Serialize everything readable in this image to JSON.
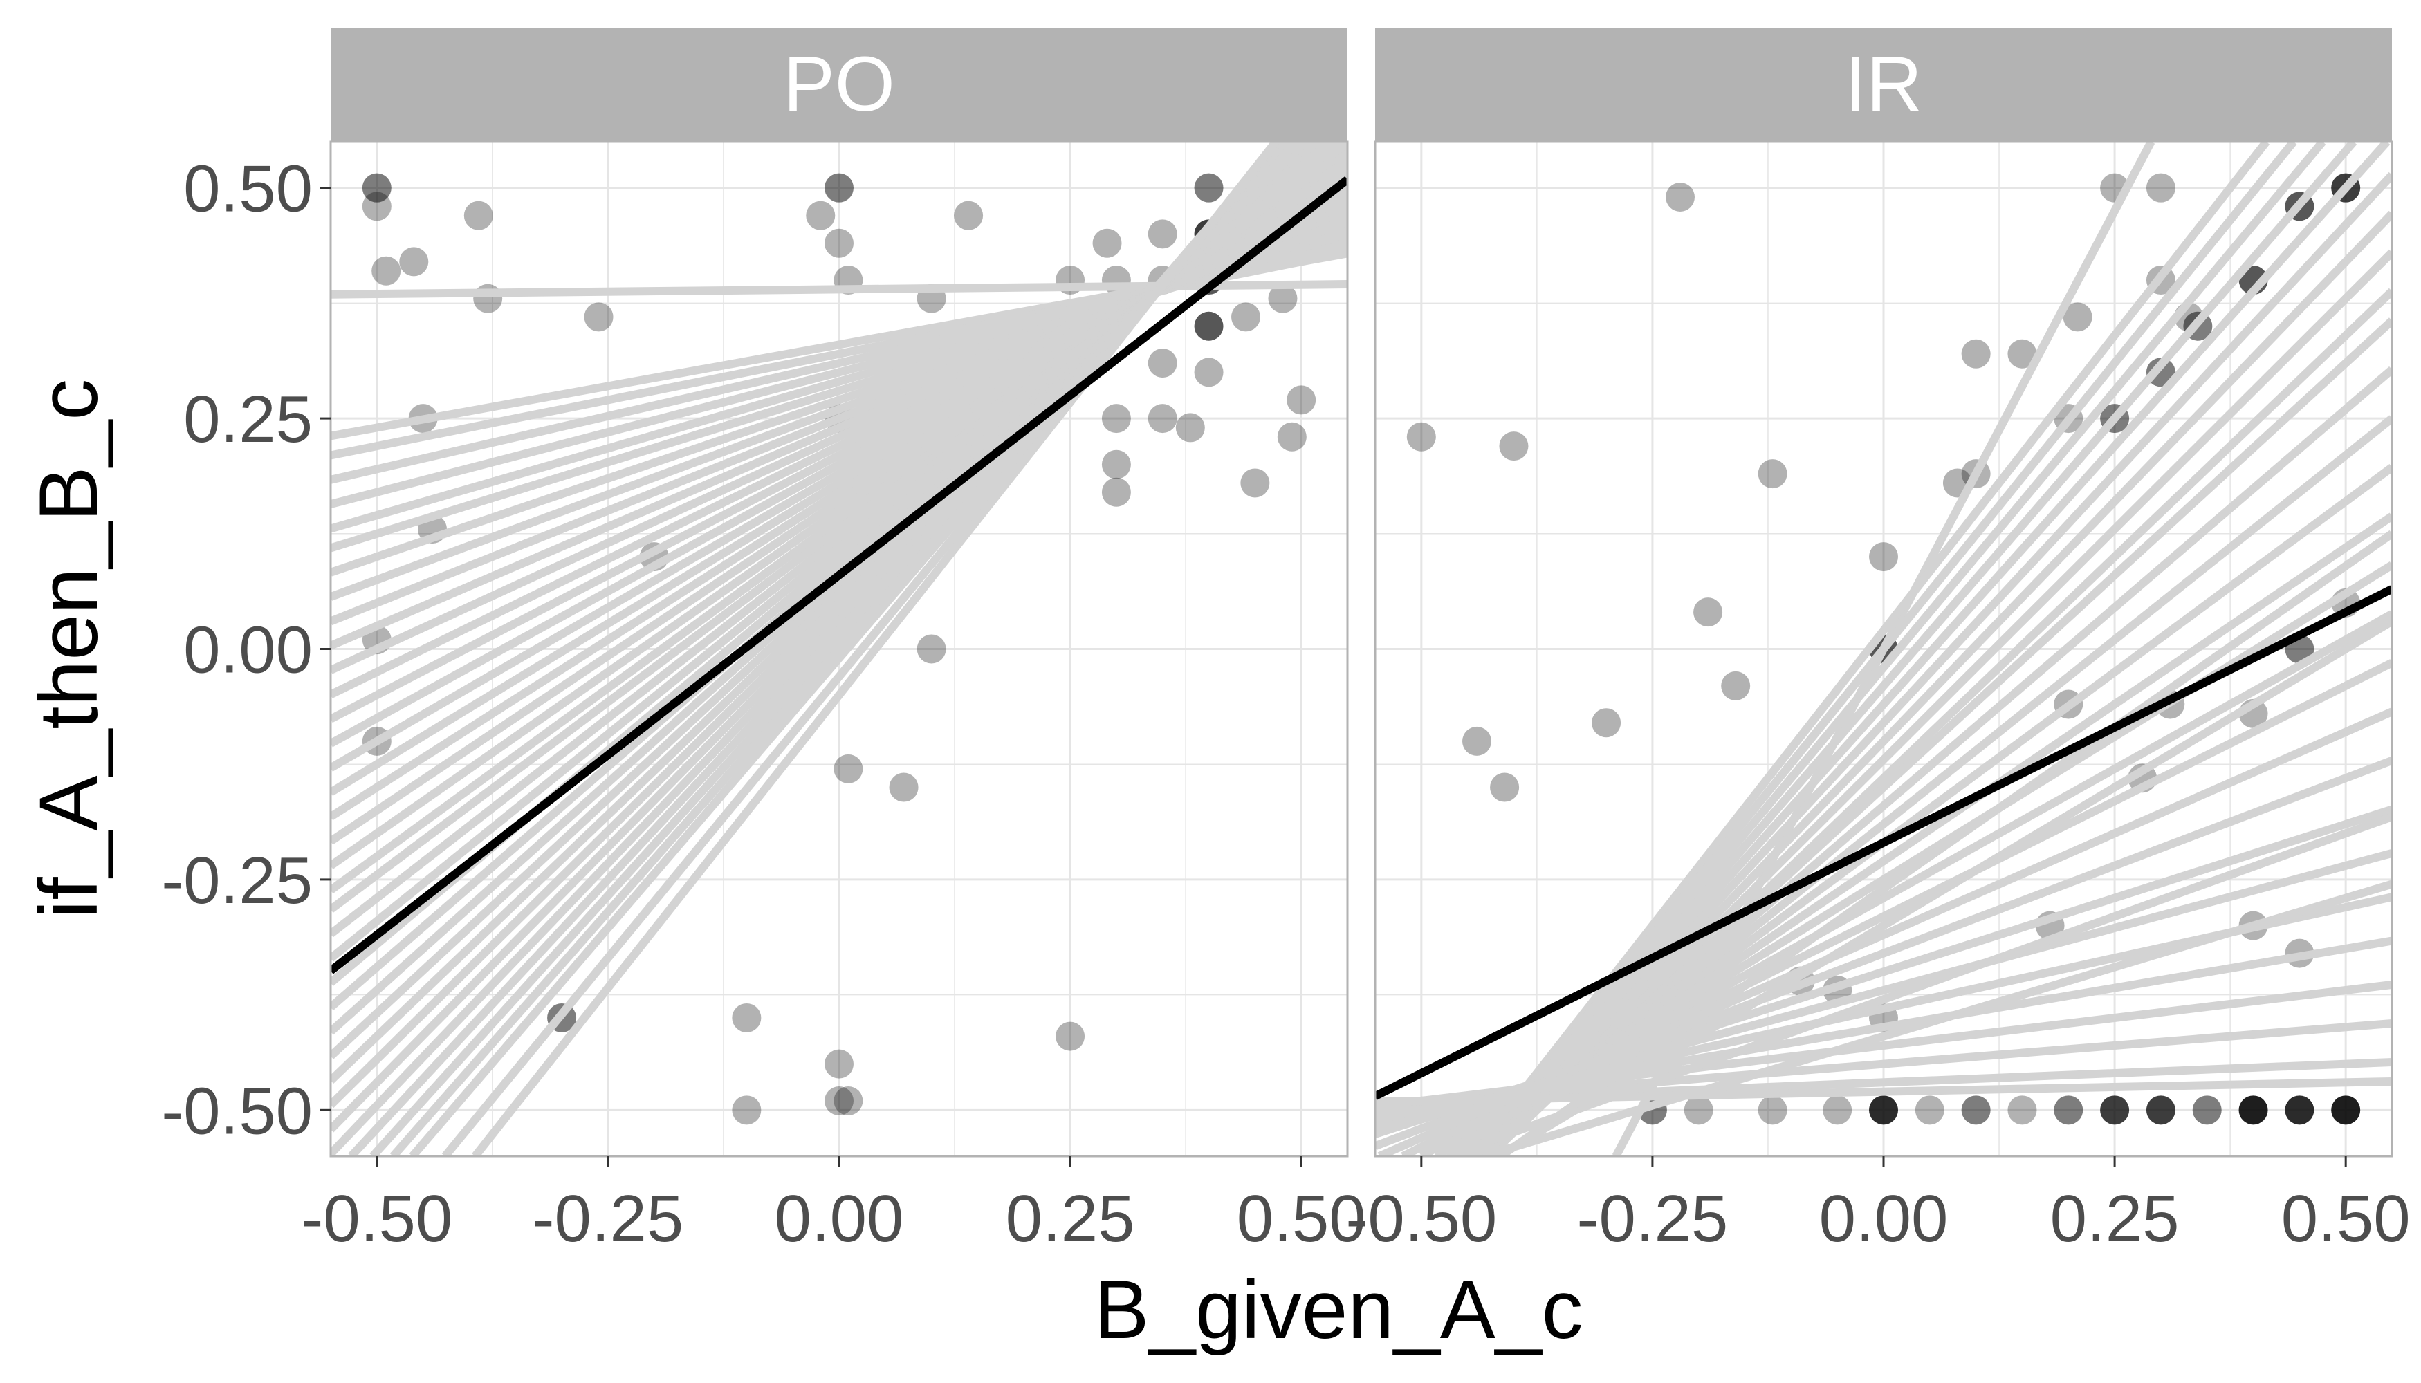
{
  "chart_data": {
    "type": "scatter",
    "title": "",
    "xlabel": "B_given_A_c",
    "ylabel": "if_A_then_B_c",
    "xlim": [
      -0.55,
      0.55
    ],
    "ylim": [
      -0.55,
      0.55
    ],
    "x_ticks": [
      "-0.50",
      "-0.25",
      "0.00",
      "0.25",
      "0.50"
    ],
    "y_ticks": [
      "-0.50",
      "-0.25",
      "0.00",
      "0.25",
      "0.50"
    ],
    "grid": true,
    "legend": "none",
    "colors": {
      "strip": "#b3b3b3",
      "grid": "#e5e5e5",
      "border": "#b3b3b3",
      "points": "#000000",
      "participant_lines": "#d3d3d3",
      "fixed_line": "#000000"
    },
    "panels": [
      {
        "name": "PO",
        "fixed_line": {
          "intercept": 0.08,
          "slope": 0.78
        },
        "participant_lines": [
          {
            "intercept": 0.39,
            "slope": 0.01
          },
          {
            "intercept": 0.33,
            "slope": 0.18
          },
          {
            "intercept": 0.32,
            "slope": 0.2
          },
          {
            "intercept": 0.31,
            "slope": 0.23
          },
          {
            "intercept": 0.3,
            "slope": 0.26
          },
          {
            "intercept": 0.29,
            "slope": 0.29
          },
          {
            "intercept": 0.28,
            "slope": 0.31
          },
          {
            "intercept": 0.27,
            "slope": 0.34
          },
          {
            "intercept": 0.26,
            "slope": 0.37
          },
          {
            "intercept": 0.25,
            "slope": 0.4
          },
          {
            "intercept": 0.24,
            "slope": 0.43
          },
          {
            "intercept": 0.23,
            "slope": 0.46
          },
          {
            "intercept": 0.22,
            "slope": 0.49
          },
          {
            "intercept": 0.21,
            "slope": 0.52
          },
          {
            "intercept": 0.2,
            "slope": 0.55
          },
          {
            "intercept": 0.19,
            "slope": 0.58
          },
          {
            "intercept": 0.18,
            "slope": 0.61
          },
          {
            "intercept": 0.17,
            "slope": 0.64
          },
          {
            "intercept": 0.16,
            "slope": 0.67
          },
          {
            "intercept": 0.15,
            "slope": 0.7
          },
          {
            "intercept": 0.14,
            "slope": 0.73
          },
          {
            "intercept": 0.13,
            "slope": 0.75
          },
          {
            "intercept": 0.12,
            "slope": 0.78
          },
          {
            "intercept": 0.11,
            "slope": 0.81
          },
          {
            "intercept": 0.1,
            "slope": 0.84
          },
          {
            "intercept": 0.09,
            "slope": 0.87
          },
          {
            "intercept": 0.08,
            "slope": 0.9
          },
          {
            "intercept": 0.07,
            "slope": 0.93
          },
          {
            "intercept": 0.06,
            "slope": 0.96
          },
          {
            "intercept": 0.05,
            "slope": 0.99
          },
          {
            "intercept": 0.04,
            "slope": 1.02
          },
          {
            "intercept": 0.03,
            "slope": 1.05
          },
          {
            "intercept": 0.02,
            "slope": 1.08
          },
          {
            "intercept": 0.01,
            "slope": 1.11
          },
          {
            "intercept": 0.0,
            "slope": 1.14
          },
          {
            "intercept": -0.01,
            "slope": 1.17
          },
          {
            "intercept": -0.03,
            "slope": 1.22
          },
          {
            "intercept": -0.05,
            "slope": 1.27
          }
        ],
        "points": [
          {
            "x": -0.5,
            "y": 0.5,
            "n": 2
          },
          {
            "x": -0.5,
            "y": 0.48,
            "n": 1
          },
          {
            "x": -0.49,
            "y": 0.41,
            "n": 1
          },
          {
            "x": -0.46,
            "y": 0.42,
            "n": 1
          },
          {
            "x": -0.39,
            "y": 0.47,
            "n": 1
          },
          {
            "x": -0.38,
            "y": 0.38,
            "n": 1
          },
          {
            "x": -0.26,
            "y": 0.36,
            "n": 1
          },
          {
            "x": -0.45,
            "y": 0.25,
            "n": 1
          },
          {
            "x": -0.44,
            "y": 0.13,
            "n": 1
          },
          {
            "x": -0.2,
            "y": 0.1,
            "n": 1
          },
          {
            "x": -0.5,
            "y": 0.01,
            "n": 1
          },
          {
            "x": -0.5,
            "y": -0.1,
            "n": 1
          },
          {
            "x": -0.3,
            "y": -0.4,
            "n": 2
          },
          {
            "x": -0.1,
            "y": -0.4,
            "n": 1
          },
          {
            "x": -0.1,
            "y": -0.5,
            "n": 1
          },
          {
            "x": 0.0,
            "y": -0.45,
            "n": 1
          },
          {
            "x": 0.0,
            "y": -0.49,
            "n": 1
          },
          {
            "x": 0.01,
            "y": -0.49,
            "n": 1
          },
          {
            "x": 0.25,
            "y": -0.42,
            "n": 1
          },
          {
            "x": 0.07,
            "y": -0.15,
            "n": 1
          },
          {
            "x": 0.01,
            "y": -0.13,
            "n": 1
          },
          {
            "x": 0.1,
            "y": 0.0,
            "n": 1
          },
          {
            "x": 0.0,
            "y": 0.25,
            "n": 1
          },
          {
            "x": 0.01,
            "y": 0.4,
            "n": 1
          },
          {
            "x": 0.0,
            "y": 0.44,
            "n": 1
          },
          {
            "x": -0.02,
            "y": 0.47,
            "n": 1
          },
          {
            "x": 0.0,
            "y": 0.5,
            "n": 2
          },
          {
            "x": 0.1,
            "y": 0.38,
            "n": 1
          },
          {
            "x": 0.14,
            "y": 0.47,
            "n": 1
          },
          {
            "x": 0.25,
            "y": 0.4,
            "n": 1
          },
          {
            "x": 0.29,
            "y": 0.44,
            "n": 1
          },
          {
            "x": 0.3,
            "y": 0.4,
            "n": 1
          },
          {
            "x": 0.3,
            "y": 0.25,
            "n": 1
          },
          {
            "x": 0.3,
            "y": 0.2,
            "n": 1
          },
          {
            "x": 0.3,
            "y": 0.17,
            "n": 1
          },
          {
            "x": 0.35,
            "y": 0.31,
            "n": 1
          },
          {
            "x": 0.35,
            "y": 0.25,
            "n": 1
          },
          {
            "x": 0.38,
            "y": 0.24,
            "n": 1
          },
          {
            "x": 0.35,
            "y": 0.4,
            "n": 1
          },
          {
            "x": 0.35,
            "y": 0.45,
            "n": 1
          },
          {
            "x": 0.4,
            "y": 0.5,
            "n": 2
          },
          {
            "x": 0.4,
            "y": 0.45,
            "n": 4
          },
          {
            "x": 0.4,
            "y": 0.43,
            "n": 3
          },
          {
            "x": 0.4,
            "y": 0.4,
            "n": 3
          },
          {
            "x": 0.4,
            "y": 0.35,
            "n": 3
          },
          {
            "x": 0.4,
            "y": 0.3,
            "n": 1
          },
          {
            "x": 0.44,
            "y": 0.36,
            "n": 1
          },
          {
            "x": 0.44,
            "y": 0.49,
            "n": 1
          },
          {
            "x": 0.45,
            "y": 0.18,
            "n": 1
          },
          {
            "x": 0.48,
            "y": 0.38,
            "n": 1
          },
          {
            "x": 0.49,
            "y": 0.23,
            "n": 1
          },
          {
            "x": 0.5,
            "y": 0.27,
            "n": 1
          },
          {
            "x": 0.48,
            "y": 0.5,
            "n": 2
          }
        ]
      },
      {
        "name": "IR",
        "fixed_line": {
          "intercept": -0.21,
          "slope": 0.5
        },
        "participant_lines": [
          {
            "intercept": 0.0,
            "slope": 1.9
          },
          {
            "intercept": 0.02,
            "slope": 1.28
          },
          {
            "intercept": 0.0,
            "slope": 1.24
          },
          {
            "intercept": -0.02,
            "slope": 1.2
          },
          {
            "intercept": -0.04,
            "slope": 1.16
          },
          {
            "intercept": -0.06,
            "slope": 1.12
          },
          {
            "intercept": -0.08,
            "slope": 1.08
          },
          {
            "intercept": -0.1,
            "slope": 1.04
          },
          {
            "intercept": -0.12,
            "slope": 1.0
          },
          {
            "intercept": -0.14,
            "slope": 0.96
          },
          {
            "intercept": -0.15,
            "slope": 0.92
          },
          {
            "intercept": -0.17,
            "slope": 0.86
          },
          {
            "intercept": -0.19,
            "slope": 0.8
          },
          {
            "intercept": -0.21,
            "slope": 0.74
          },
          {
            "intercept": -0.23,
            "slope": 0.68
          },
          {
            "intercept": -0.25,
            "slope": 0.62
          },
          {
            "intercept": -0.27,
            "slope": 0.56
          },
          {
            "intercept": -0.29,
            "slope": 0.5
          },
          {
            "intercept": -0.31,
            "slope": 0.44
          },
          {
            "intercept": -0.33,
            "slope": 0.38
          },
          {
            "intercept": -0.35,
            "slope": 0.32
          },
          {
            "intercept": -0.37,
            "slope": 0.27
          },
          {
            "intercept": -0.39,
            "slope": 0.22
          },
          {
            "intercept": -0.41,
            "slope": 0.17
          },
          {
            "intercept": -0.43,
            "slope": 0.12
          },
          {
            "intercept": -0.45,
            "slope": 0.08
          },
          {
            "intercept": -0.47,
            "slope": 0.04
          },
          {
            "intercept": -0.48,
            "slope": 0.02
          },
          {
            "intercept": -0.42,
            "slope": 0.3
          },
          {
            "intercept": -0.38,
            "slope": 0.36
          },
          {
            "intercept": -0.3,
            "slope": 0.6
          },
          {
            "intercept": -0.26,
            "slope": 0.7
          }
        ],
        "points": [
          {
            "x": -0.5,
            "y": 0.23,
            "n": 1
          },
          {
            "x": -0.4,
            "y": 0.22,
            "n": 1
          },
          {
            "x": -0.22,
            "y": 0.49,
            "n": 1
          },
          {
            "x": -0.44,
            "y": -0.1,
            "n": 1
          },
          {
            "x": -0.41,
            "y": -0.15,
            "n": 1
          },
          {
            "x": -0.3,
            "y": -0.08,
            "n": 1
          },
          {
            "x": -0.19,
            "y": 0.04,
            "n": 1
          },
          {
            "x": -0.16,
            "y": -0.04,
            "n": 1
          },
          {
            "x": -0.12,
            "y": 0.19,
            "n": 1
          },
          {
            "x": -0.09,
            "y": -0.36,
            "n": 1
          },
          {
            "x": 0.0,
            "y": 0.1,
            "n": 1
          },
          {
            "x": 0.0,
            "y": 0.0,
            "n": 3
          },
          {
            "x": 0.08,
            "y": 0.18,
            "n": 1
          },
          {
            "x": 0.1,
            "y": 0.19,
            "n": 1
          },
          {
            "x": 0.1,
            "y": 0.32,
            "n": 1
          },
          {
            "x": 0.15,
            "y": 0.32,
            "n": 1
          },
          {
            "x": 0.2,
            "y": 0.25,
            "n": 1
          },
          {
            "x": 0.21,
            "y": 0.36,
            "n": 1
          },
          {
            "x": 0.25,
            "y": 0.5,
            "n": 1
          },
          {
            "x": 0.3,
            "y": 0.5,
            "n": 1
          },
          {
            "x": 0.3,
            "y": 0.4,
            "n": 1
          },
          {
            "x": 0.3,
            "y": 0.3,
            "n": 2
          },
          {
            "x": 0.25,
            "y": 0.25,
            "n": 2
          },
          {
            "x": 0.33,
            "y": 0.36,
            "n": 1
          },
          {
            "x": 0.34,
            "y": 0.35,
            "n": 2
          },
          {
            "x": 0.4,
            "y": 0.4,
            "n": 3
          },
          {
            "x": 0.45,
            "y": 0.48,
            "n": 3
          },
          {
            "x": 0.5,
            "y": 0.5,
            "n": 4
          },
          {
            "x": 0.45,
            "y": 0.0,
            "n": 2
          },
          {
            "x": 0.5,
            "y": 0.05,
            "n": 1
          },
          {
            "x": 0.4,
            "y": -0.07,
            "n": 1
          },
          {
            "x": 0.31,
            "y": -0.06,
            "n": 1
          },
          {
            "x": 0.2,
            "y": -0.06,
            "n": 1
          },
          {
            "x": 0.28,
            "y": -0.14,
            "n": 1
          },
          {
            "x": -0.25,
            "y": -0.5,
            "n": 2
          },
          {
            "x": -0.2,
            "y": -0.5,
            "n": 1
          },
          {
            "x": -0.12,
            "y": -0.5,
            "n": 1
          },
          {
            "x": -0.05,
            "y": -0.5,
            "n": 1
          },
          {
            "x": 0.0,
            "y": -0.5,
            "n": 5
          },
          {
            "x": 0.05,
            "y": -0.5,
            "n": 1
          },
          {
            "x": 0.1,
            "y": -0.5,
            "n": 2
          },
          {
            "x": 0.15,
            "y": -0.5,
            "n": 1
          },
          {
            "x": 0.2,
            "y": -0.5,
            "n": 2
          },
          {
            "x": 0.25,
            "y": -0.5,
            "n": 4
          },
          {
            "x": 0.3,
            "y": -0.5,
            "n": 4
          },
          {
            "x": 0.35,
            "y": -0.5,
            "n": 2
          },
          {
            "x": 0.4,
            "y": -0.5,
            "n": 6
          },
          {
            "x": 0.45,
            "y": -0.5,
            "n": 5
          },
          {
            "x": 0.5,
            "y": -0.5,
            "n": 6
          },
          {
            "x": 0.0,
            "y": -0.4,
            "n": 1
          },
          {
            "x": -0.05,
            "y": -0.37,
            "n": 1
          },
          {
            "x": 0.18,
            "y": -0.3,
            "n": 1
          },
          {
            "x": 0.4,
            "y": -0.3,
            "n": 1
          },
          {
            "x": 0.45,
            "y": -0.33,
            "n": 1
          }
        ]
      }
    ]
  }
}
